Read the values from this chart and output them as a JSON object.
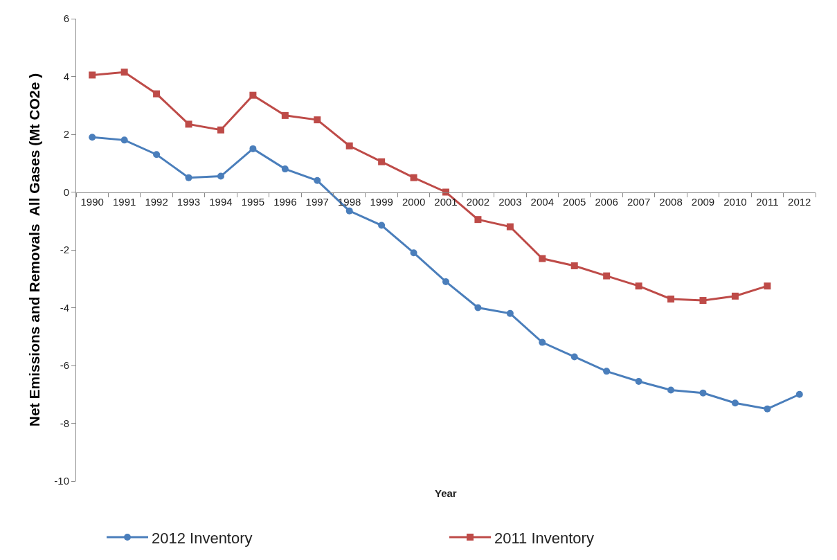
{
  "chart_data": {
    "type": "line",
    "xlabel": "Year",
    "ylabel": "Net Emissions and Removals  All Gases (Mt CO2e )",
    "categories": [
      "1990",
      "1991",
      "1992",
      "1993",
      "1994",
      "1995",
      "1996",
      "1997",
      "1998",
      "1999",
      "2000",
      "2001",
      "2002",
      "2003",
      "2004",
      "2005",
      "2006",
      "2007",
      "2008",
      "2009",
      "2010",
      "2011",
      "2012"
    ],
    "series": [
      {
        "name": "2012 Inventory",
        "color": "#4a7ebb",
        "marker": "circle",
        "values": [
          1.9,
          1.8,
          1.3,
          0.5,
          0.55,
          1.5,
          0.8,
          0.4,
          -0.65,
          -1.15,
          -2.1,
          -3.1,
          -4.0,
          -4.2,
          -5.2,
          -5.7,
          -6.2,
          -6.55,
          -6.85,
          -6.95,
          -7.3,
          -7.5,
          -7.0
        ]
      },
      {
        "name": "2011 Inventory",
        "color": "#be4b48",
        "marker": "square",
        "values": [
          4.05,
          4.15,
          3.4,
          2.35,
          2.15,
          3.35,
          2.65,
          2.5,
          1.6,
          1.05,
          0.5,
          0.0,
          -0.95,
          -1.2,
          -2.3,
          -2.55,
          -2.9,
          -3.25,
          -3.7,
          -3.75,
          -3.6,
          -3.25,
          null
        ]
      }
    ],
    "ylim": [
      -10,
      6
    ],
    "yticks": [
      -10,
      -8,
      -6,
      -4,
      -2,
      0,
      2,
      4,
      6
    ],
    "legend": "bottom",
    "line_style": "solid"
  }
}
